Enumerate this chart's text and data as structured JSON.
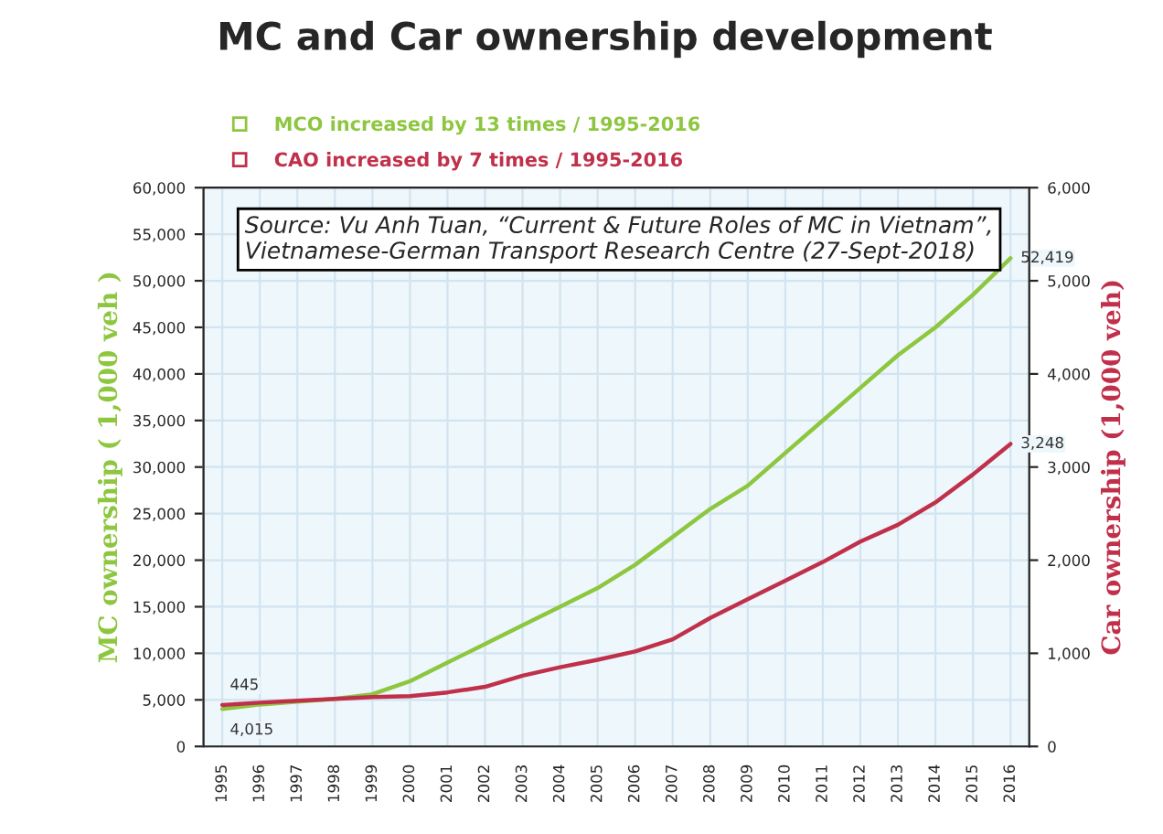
{
  "chart_data": {
    "type": "line",
    "title": "MC and Car ownership development",
    "categories": [
      "1995",
      "1996",
      "1997",
      "1998",
      "1999",
      "2000",
      "2001",
      "2002",
      "2003",
      "2004",
      "2005",
      "2006",
      "2007",
      "2008",
      "2009",
      "2010",
      "2011",
      "2012",
      "2013",
      "2014",
      "2015",
      "2016"
    ],
    "series": [
      {
        "name": "MCO increased by 13 times / 1995-2016",
        "color": "#8dc63f",
        "values": [
          4015,
          4500,
          4800,
          5100,
          5600,
          7000,
          9000,
          11000,
          13000,
          15000,
          17000,
          19500,
          22500,
          25500,
          28000,
          31500,
          35000,
          38500,
          42000,
          45000,
          48500,
          52419
        ],
        "value_labels": [
          "4,015",
          null,
          null,
          null,
          null,
          null,
          null,
          null,
          null,
          null,
          null,
          null,
          null,
          null,
          null,
          null,
          null,
          null,
          null,
          null,
          null,
          "52,419"
        ]
      },
      {
        "name": "CAO increased by 7 times / 1995-2016",
        "color": "#c0304a",
        "axis": "y2",
        "values": [
          445,
          470,
          490,
          510,
          530,
          540,
          580,
          640,
          760,
          850,
          930,
          1020,
          1150,
          1380,
          1580,
          1780,
          1980,
          2200,
          2380,
          2620,
          2920,
          3248
        ],
        "value_labels": [
          "445",
          null,
          null,
          null,
          null,
          null,
          null,
          null,
          null,
          null,
          null,
          null,
          null,
          null,
          null,
          null,
          null,
          null,
          null,
          null,
          null,
          "3,248"
        ]
      }
    ],
    "ylabel": "MC ownership ( 1,000 veh )",
    "y2label": "Car ownership (1,000 veh)",
    "ylim": [
      0,
      60000
    ],
    "yticks": [
      {
        "value": 0,
        "label": "0"
      },
      {
        "value": 5000,
        "label": "5,000"
      },
      {
        "value": 10000,
        "label": "10,000"
      },
      {
        "value": 15000,
        "label": "15,000"
      },
      {
        "value": 20000,
        "label": "20,000"
      },
      {
        "value": 25000,
        "label": "25,000"
      },
      {
        "value": 30000,
        "label": "30,000"
      },
      {
        "value": 35000,
        "label": "35,000"
      },
      {
        "value": 40000,
        "label": "40,000"
      },
      {
        "value": 45000,
        "label": "45,000"
      },
      {
        "value": 50000,
        "label": "50,000"
      },
      {
        "value": 55000,
        "label": "55,000"
      },
      {
        "value": 60000,
        "label": "60,000"
      }
    ],
    "y2lim": [
      0,
      6000
    ],
    "y2ticks": [
      {
        "value": 0,
        "label": "0"
      },
      {
        "value": 1000,
        "label": "1,000"
      },
      {
        "value": 2000,
        "label": "2,000"
      },
      {
        "value": 3000,
        "label": "3,000"
      },
      {
        "value": 4000,
        "label": "4,000"
      },
      {
        "value": 5000,
        "label": "5,000"
      },
      {
        "value": 6000,
        "label": "6,000"
      }
    ],
    "grid": true,
    "legend": "top left",
    "marker": "none",
    "line_style": "solid",
    "annotations": [
      "Source: Vu Anh Tuan, “Current & Future Roles of MC in Vietnam”, Vietnamese-German Transport Research Centre (27-Sept-2018)"
    ]
  }
}
